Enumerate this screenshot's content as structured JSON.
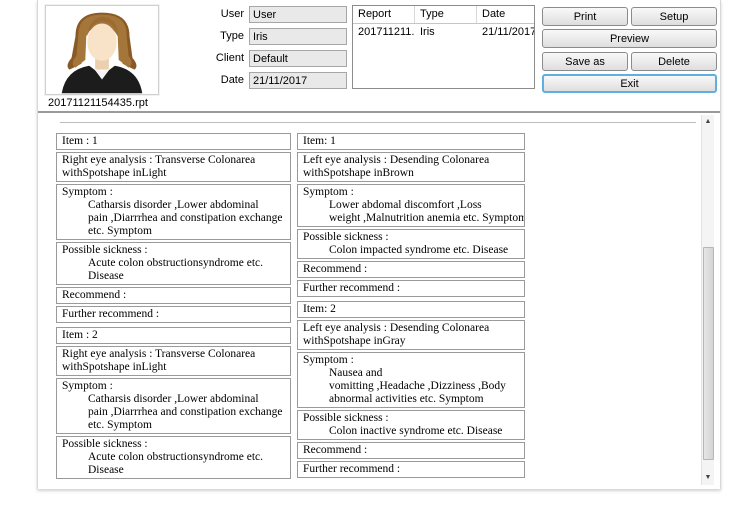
{
  "window": {
    "filename": "20171121154435.rpt"
  },
  "form": {
    "fields": [
      {
        "label": "User",
        "value": "User"
      },
      {
        "label": "Type",
        "value": "Iris"
      },
      {
        "label": "Client",
        "value": "Default"
      },
      {
        "label": "Date",
        "value": "21/11/2017"
      }
    ]
  },
  "report_table": {
    "columns": [
      "Report",
      "Type",
      "Date"
    ],
    "rows": [
      [
        "201711211...",
        "Iris",
        "21/11/2017"
      ]
    ]
  },
  "buttons": {
    "print": "Print",
    "setup": "Setup",
    "preview": "Preview",
    "save_as": "Save as",
    "delete": "Delete",
    "exit": "Exit"
  },
  "scrollbar": {
    "up_icon": "▲",
    "down_icon": "▼"
  },
  "colors": {
    "exit_focus_border": "#5fb0e0",
    "field_background": "#e9e9e9",
    "box_border": "#9a9a9a"
  },
  "report": {
    "left_column": [
      {
        "rows": [
          {
            "lines": [
              "Item : 1"
            ],
            "hang": false
          },
          {
            "lines": [
              "Right eye analysis : Transverse Colonarea",
              "withSpotshape inLight"
            ],
            "hang": false
          },
          {
            "lines": [
              "Symptom :",
              "Catharsis disorder ,Lower abdominal",
              "pain ,Diarrrhea and constipation exchange",
              "etc. Symptom"
            ],
            "hang": true
          },
          {
            "lines": [
              "Possible sickness :",
              "Acute colon obstructionsyndrome etc.",
              "Disease"
            ],
            "hang": true
          },
          {
            "lines": [
              "Recommend :"
            ],
            "hang": false
          },
          {
            "lines": [
              "Further recommend :"
            ],
            "hang": false
          }
        ]
      },
      {
        "rows": [
          {
            "lines": [
              "Item : 2"
            ],
            "hang": false
          },
          {
            "lines": [
              "Right eye analysis : Transverse Colonarea",
              "withSpotshape inLight"
            ],
            "hang": false
          },
          {
            "lines": [
              "Symptom :",
              "Catharsis disorder ,Lower abdominal",
              "pain ,Diarrrhea and constipation exchange",
              "etc. Symptom"
            ],
            "hang": true
          },
          {
            "lines": [
              "Possible sickness :",
              "Acute colon obstructionsyndrome etc.",
              "Disease"
            ],
            "hang": true
          }
        ]
      }
    ],
    "right_column": [
      {
        "rows": [
          {
            "lines": [
              "Item: 1"
            ],
            "hang": false
          },
          {
            "lines": [
              "Left eye analysis : Desending Colonarea",
              "withSpotshape inBrown"
            ],
            "hang": false
          },
          {
            "lines": [
              "Symptom :",
              "Lower abdomal discomfort ,Loss",
              "weight ,Malnutrition anemia etc. Symptom"
            ],
            "hang": true
          },
          {
            "lines": [
              "Possible sickness :",
              "Colon impacted syndrome etc. Disease"
            ],
            "hang": true
          },
          {
            "lines": [
              "Recommend :"
            ],
            "hang": false
          },
          {
            "lines": [
              "Further recommend :"
            ],
            "hang": false
          }
        ]
      },
      {
        "rows": [
          {
            "lines": [
              "Item: 2"
            ],
            "hang": false
          },
          {
            "lines": [
              "Left eye analysis : Desending Colonarea",
              "withSpotshape inGray"
            ],
            "hang": false
          },
          {
            "lines": [
              "Symptom :",
              "Nausea and",
              "vomitting ,Headache ,Dizziness ,Body",
              "abnormal activities etc. Symptom"
            ],
            "hang": true
          },
          {
            "lines": [
              "Possible sickness :",
              "Colon inactive syndrome etc. Disease"
            ],
            "hang": true
          },
          {
            "lines": [
              "Recommend :"
            ],
            "hang": false
          },
          {
            "lines": [
              "Further recommend :"
            ],
            "hang": false
          }
        ]
      }
    ]
  }
}
